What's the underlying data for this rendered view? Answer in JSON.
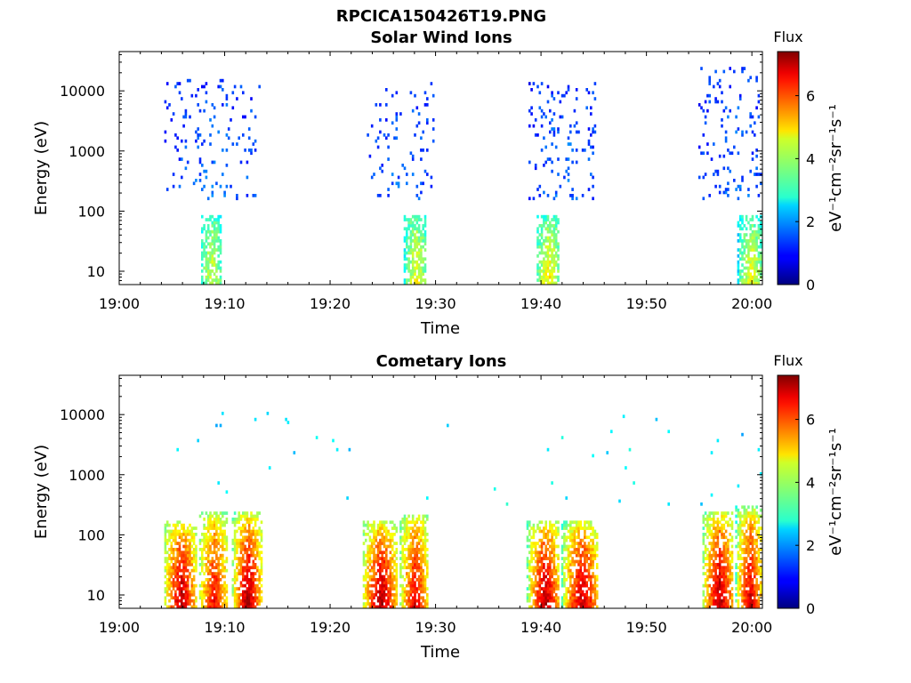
{
  "figure": {
    "title": "RPCICA150426T19.PNG"
  },
  "chart_data": [
    {
      "type": "heatmap",
      "title": "Solar Wind Ions",
      "xlabel": "Time",
      "ylabel": "Energy (eV)",
      "x_ticks": [
        "19:00",
        "19:10",
        "19:20",
        "19:30",
        "19:40",
        "19:50",
        "20:00"
      ],
      "x_tick_minutes": [
        0,
        10,
        20,
        30,
        40,
        50,
        60
      ],
      "xlim_minutes": [
        0,
        61
      ],
      "y_scale": "log",
      "y_ticks": [
        "10",
        "100",
        "1000",
        "10000"
      ],
      "y_tick_values": [
        10,
        100,
        1000,
        10000
      ],
      "ylim": [
        6,
        45000
      ],
      "colorbar": {
        "label": "Flux",
        "unit": "eV⁻¹cm⁻²sr⁻¹s⁻¹",
        "ticks": [
          "0",
          "2",
          "4",
          "6"
        ],
        "tick_values": [
          0,
          2,
          4,
          6
        ],
        "range": [
          0,
          7.4
        ],
        "colormap": "jet"
      },
      "features": [
        {
          "t0": 7.7,
          "t1": 9.7,
          "elo": 6,
          "ehi": 90,
          "fmin": 2.6,
          "fmax": 4.4,
          "density": 0.85
        },
        {
          "t0": 4,
          "t1": 13.3,
          "elo": 150,
          "ehi": 15000,
          "fmin": 1.1,
          "fmax": 1.7,
          "density": 0.07
        },
        {
          "t0": 27,
          "t1": 29.2,
          "elo": 6,
          "ehi": 90,
          "fmin": 2.6,
          "fmax": 4.6,
          "density": 0.85
        },
        {
          "t0": 23.5,
          "t1": 29.8,
          "elo": 150,
          "ehi": 14000,
          "fmin": 1.1,
          "fmax": 1.7,
          "density": 0.07
        },
        {
          "t0": 39.5,
          "t1": 41.8,
          "elo": 6,
          "ehi": 90,
          "fmin": 2.6,
          "fmax": 4.8,
          "density": 0.85
        },
        {
          "t0": 38.8,
          "t1": 45.3,
          "elo": 150,
          "ehi": 14000,
          "fmin": 1.1,
          "fmax": 1.7,
          "density": 0.08
        },
        {
          "t0": 58.7,
          "t1": 61,
          "elo": 6,
          "ehi": 90,
          "fmin": 2.6,
          "fmax": 4.6,
          "density": 0.85
        },
        {
          "t0": 55,
          "t1": 61,
          "elo": 150,
          "ehi": 25000,
          "fmin": 1.1,
          "fmax": 1.7,
          "density": 0.09
        }
      ]
    },
    {
      "type": "heatmap",
      "title": "Cometary Ions",
      "xlabel": "Time",
      "ylabel": "Energy (eV)",
      "x_ticks": [
        "19:00",
        "19:10",
        "19:20",
        "19:30",
        "19:40",
        "19:50",
        "20:00"
      ],
      "x_tick_minutes": [
        0,
        10,
        20,
        30,
        40,
        50,
        60
      ],
      "xlim_minutes": [
        0,
        61
      ],
      "y_scale": "log",
      "y_ticks": [
        "10",
        "100",
        "1000",
        "10000"
      ],
      "y_tick_values": [
        10,
        100,
        1000,
        10000
      ],
      "ylim": [
        6,
        45000
      ],
      "colorbar": {
        "label": "Flux",
        "unit": "eV⁻¹cm⁻²sr⁻¹s⁻¹",
        "ticks": [
          "0",
          "2",
          "4",
          "6"
        ],
        "tick_values": [
          0,
          2,
          4,
          6
        ],
        "range": [
          0,
          7.4
        ],
        "colormap": "jet"
      },
      "features": [
        {
          "t0": 4.2,
          "t1": 7.3,
          "elo": 6,
          "ehi": 180,
          "fmin": 3.2,
          "fmax": 7.2,
          "density": 0.9
        },
        {
          "t0": 7.5,
          "t1": 10.3,
          "elo": 6,
          "ehi": 250,
          "fmin": 3.2,
          "fmax": 6.6,
          "density": 0.9
        },
        {
          "t0": 10.7,
          "t1": 13.5,
          "elo": 6,
          "ehi": 250,
          "fmin": 3.2,
          "fmax": 7.3,
          "density": 0.9
        },
        {
          "t0": 23,
          "t1": 26.4,
          "elo": 6,
          "ehi": 180,
          "fmin": 3.2,
          "fmax": 7.2,
          "density": 0.9
        },
        {
          "t0": 26.6,
          "t1": 29.3,
          "elo": 6,
          "ehi": 230,
          "fmin": 3.2,
          "fmax": 6.8,
          "density": 0.9
        },
        {
          "t0": 38.7,
          "t1": 41.8,
          "elo": 6,
          "ehi": 180,
          "fmin": 3.2,
          "fmax": 7.2,
          "density": 0.9
        },
        {
          "t0": 42,
          "t1": 45.5,
          "elo": 6,
          "ehi": 180,
          "fmin": 3.2,
          "fmax": 7.1,
          "density": 0.9
        },
        {
          "t0": 55.3,
          "t1": 58.3,
          "elo": 6,
          "ehi": 250,
          "fmin": 3.2,
          "fmax": 7.2,
          "density": 0.9
        },
        {
          "t0": 58.5,
          "t1": 61,
          "elo": 6,
          "ehi": 300,
          "fmin": 3.2,
          "fmax": 6.9,
          "density": 0.9
        },
        {
          "t0": 5,
          "t1": 61,
          "elo": 300,
          "ehi": 12000,
          "fmin": 2.3,
          "fmax": 2.9,
          "density": 0.004
        }
      ]
    }
  ]
}
